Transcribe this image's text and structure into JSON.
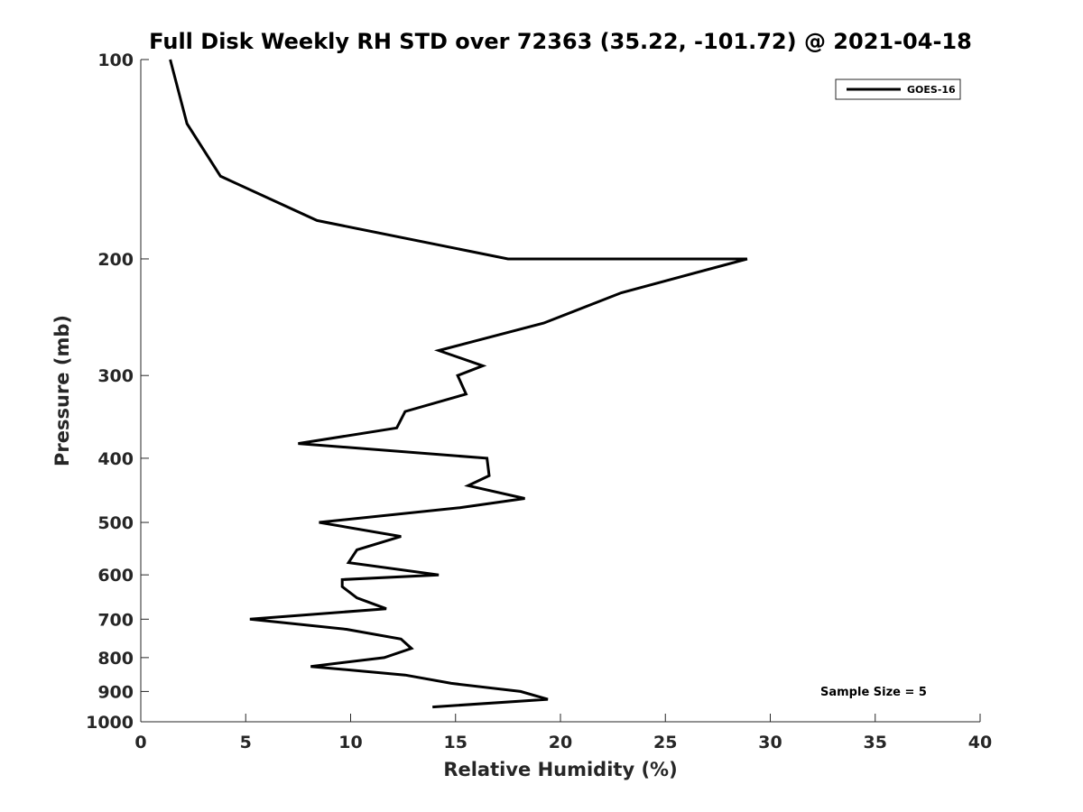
{
  "chart_data": {
    "type": "line",
    "title": "Full Disk Weekly RH STD over 72363 (35.22, -101.72) @ 2021-04-18",
    "xlabel": "Relative Humidity (%)",
    "ylabel": "Pressure (mb)",
    "xlim": [
      0,
      40
    ],
    "ylim": [
      100,
      1000
    ],
    "y_scale": "log",
    "y_reversed": true,
    "grid": false,
    "legend_position": "top-right",
    "x_ticks": [
      "0",
      "5",
      "10",
      "15",
      "20",
      "25",
      "30",
      "35",
      "40"
    ],
    "y_ticks": [
      "100",
      "200",
      "300",
      "400",
      "500",
      "600",
      "700",
      "800",
      "900",
      "1000"
    ],
    "annotation": "Sample Size = 5",
    "series": [
      {
        "name": "GOES-16",
        "color": "#000000",
        "points": [
          {
            "x": 1.4,
            "y": 100
          },
          {
            "x": 2.2,
            "y": 125
          },
          {
            "x": 3.8,
            "y": 150
          },
          {
            "x": 8.4,
            "y": 175
          },
          {
            "x": 17.5,
            "y": 200
          },
          {
            "x": 28.9,
            "y": 200
          },
          {
            "x": 22.9,
            "y": 225
          },
          {
            "x": 19.2,
            "y": 250
          },
          {
            "x": 14.2,
            "y": 275
          },
          {
            "x": 16.3,
            "y": 290
          },
          {
            "x": 15.1,
            "y": 300
          },
          {
            "x": 15.5,
            "y": 320
          },
          {
            "x": 12.6,
            "y": 340
          },
          {
            "x": 12.2,
            "y": 360
          },
          {
            "x": 7.5,
            "y": 380
          },
          {
            "x": 16.5,
            "y": 400
          },
          {
            "x": 16.6,
            "y": 425
          },
          {
            "x": 15.6,
            "y": 440
          },
          {
            "x": 18.3,
            "y": 460
          },
          {
            "x": 15.2,
            "y": 475
          },
          {
            "x": 8.5,
            "y": 500
          },
          {
            "x": 12.4,
            "y": 525
          },
          {
            "x": 10.3,
            "y": 550
          },
          {
            "x": 9.9,
            "y": 575
          },
          {
            "x": 14.2,
            "y": 600
          },
          {
            "x": 9.6,
            "y": 610
          },
          {
            "x": 9.6,
            "y": 625
          },
          {
            "x": 10.3,
            "y": 650
          },
          {
            "x": 11.7,
            "y": 675
          },
          {
            "x": 5.2,
            "y": 700
          },
          {
            "x": 9.8,
            "y": 725
          },
          {
            "x": 12.4,
            "y": 750
          },
          {
            "x": 12.9,
            "y": 775
          },
          {
            "x": 11.6,
            "y": 800
          },
          {
            "x": 8.1,
            "y": 825
          },
          {
            "x": 12.6,
            "y": 850
          },
          {
            "x": 14.8,
            "y": 875
          },
          {
            "x": 18.1,
            "y": 900
          },
          {
            "x": 19.4,
            "y": 925
          },
          {
            "x": 13.9,
            "y": 950
          }
        ]
      }
    ]
  }
}
